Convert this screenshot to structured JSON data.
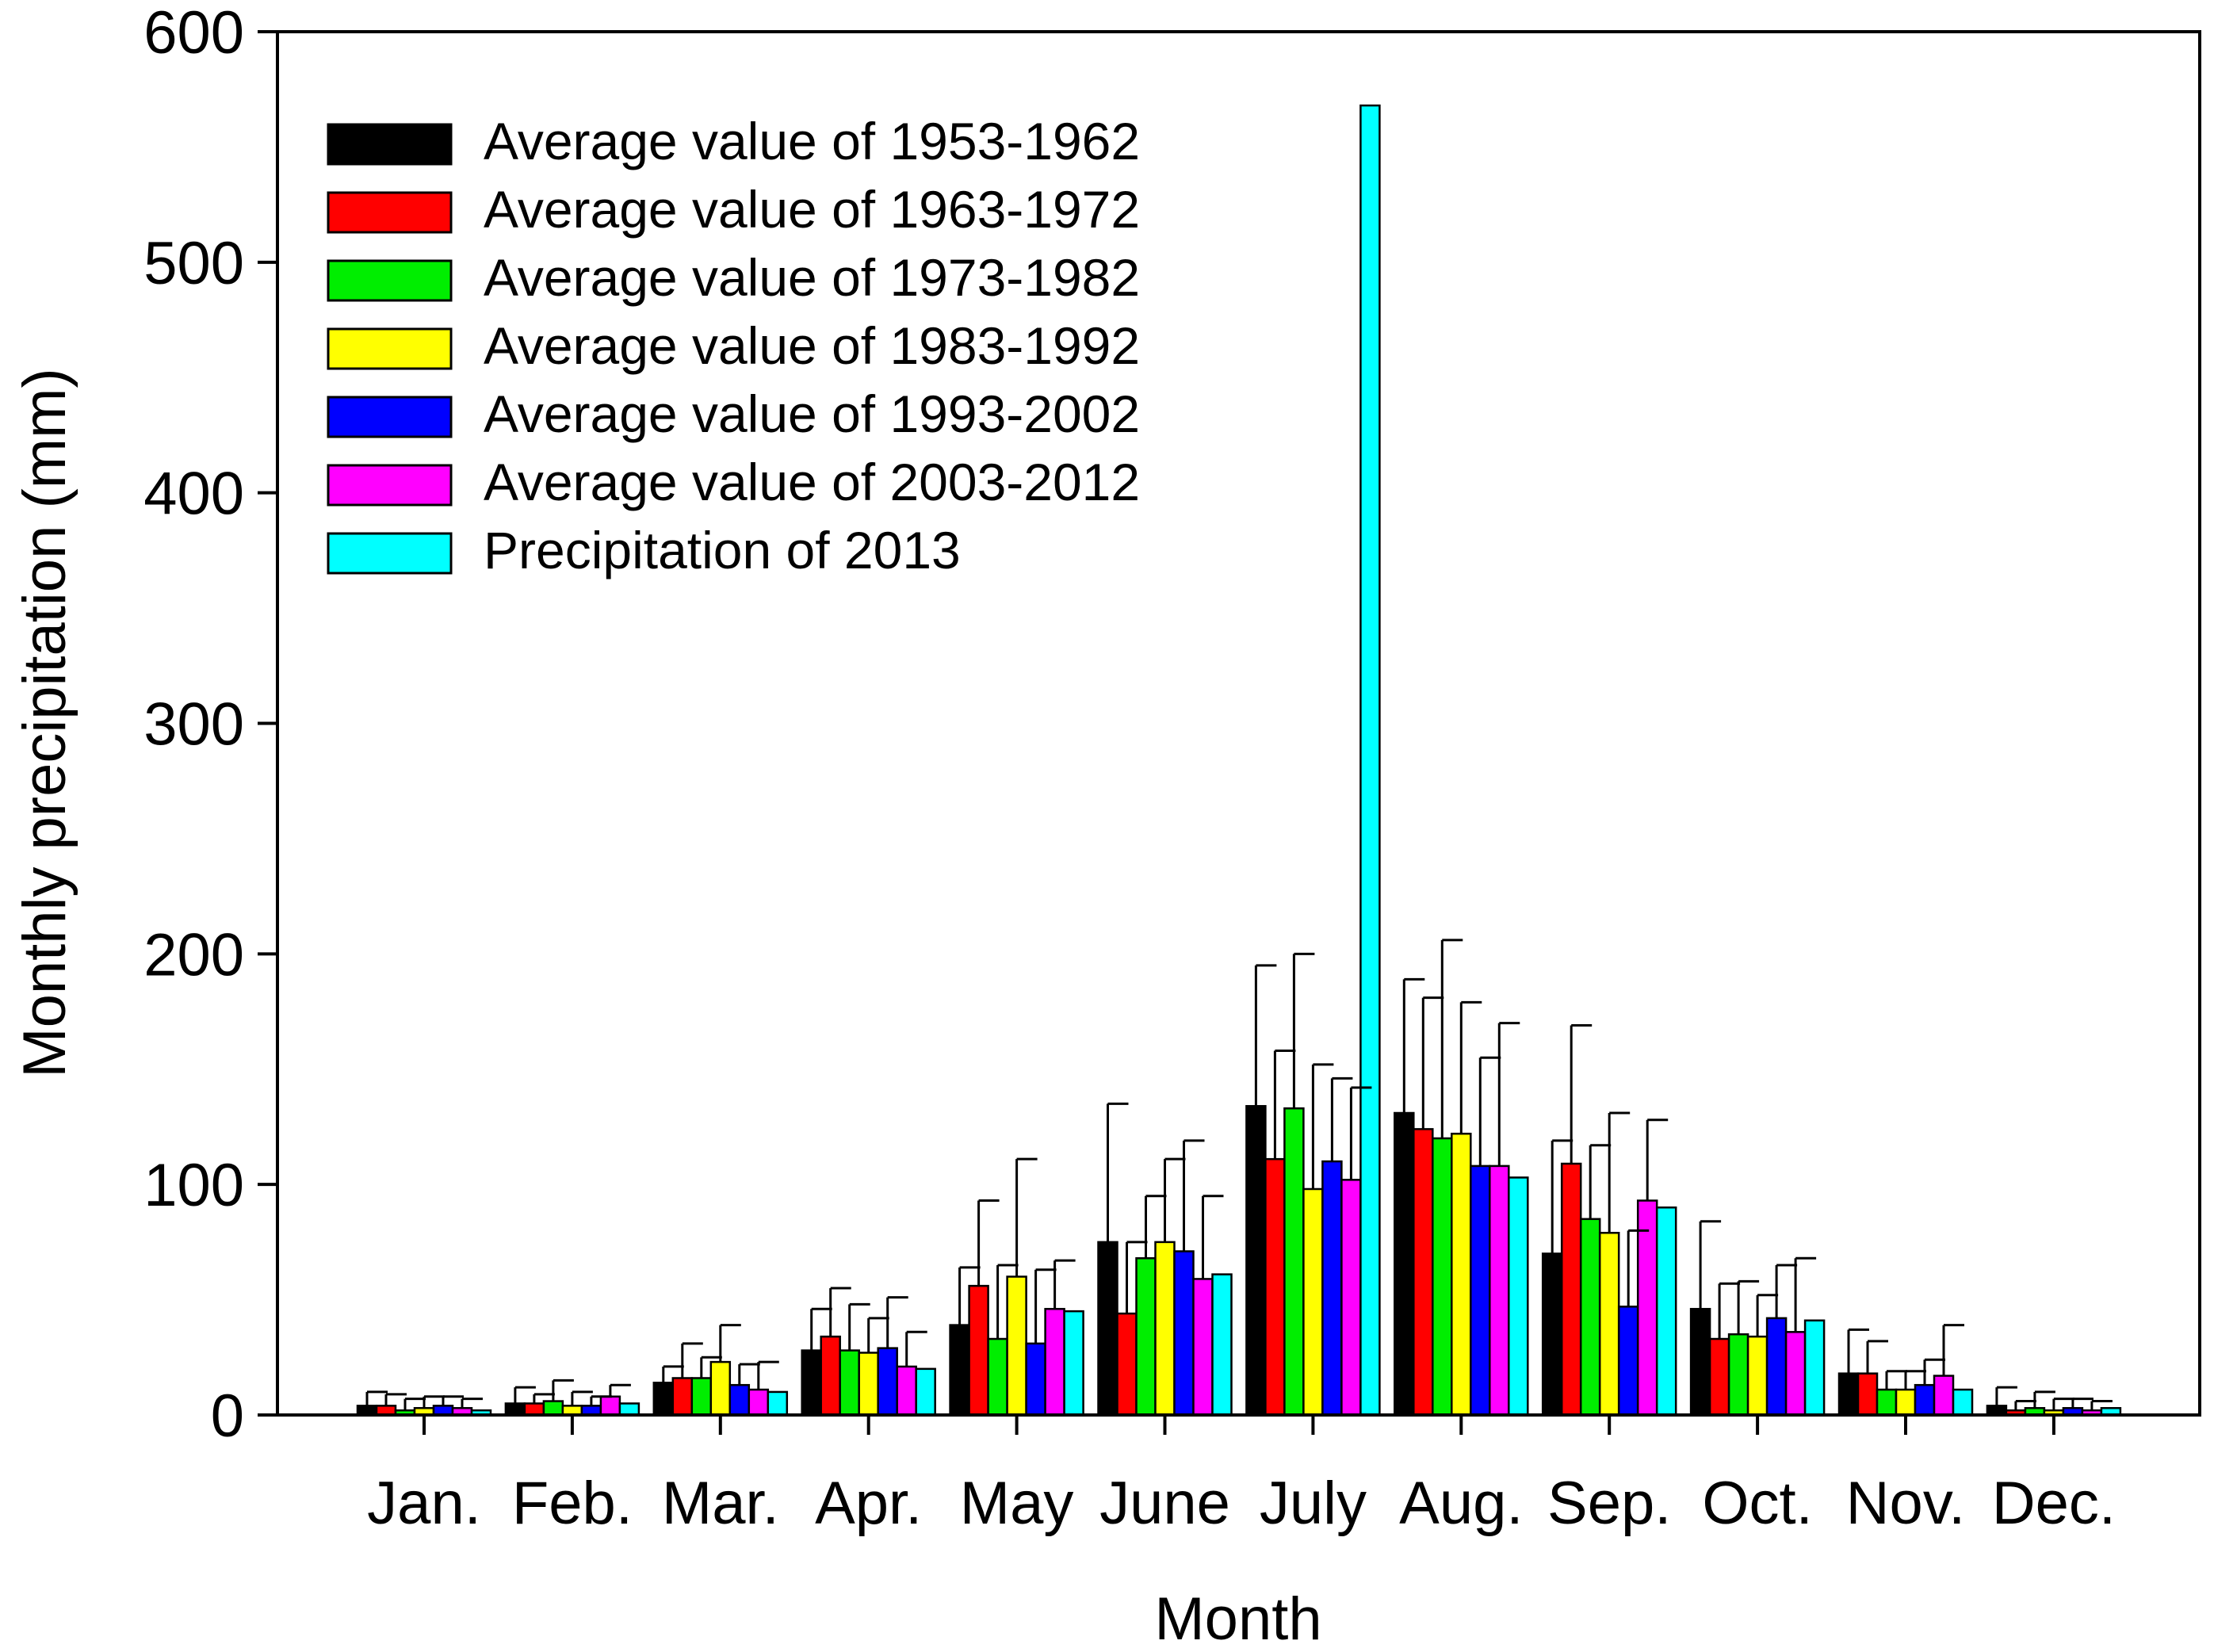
{
  "chart_data": {
    "type": "bar",
    "title": "",
    "xlabel": "Month",
    "ylabel": "Monthly precipitation (mm)",
    "ylim": [
      0,
      600
    ],
    "yticks": [
      0,
      100,
      200,
      300,
      400,
      500,
      600
    ],
    "grid": false,
    "legend_position": "top-left",
    "categories": [
      "Jan.",
      "Feb.",
      "Mar.",
      "Apr.",
      "May",
      "June",
      "July",
      "Aug.",
      "Sep.",
      "Oct.",
      "Nov.",
      "Dec."
    ],
    "series": [
      {
        "name": "Average value of 1953-1962",
        "color": "#000000",
        "values": [
          4,
          5,
          14,
          28,
          39,
          75,
          134,
          131,
          70,
          46,
          18,
          4
        ],
        "error": [
          6,
          7,
          7,
          18,
          25,
          60,
          61,
          58,
          49,
          38,
          19,
          8
        ]
      },
      {
        "name": "Average value of 1963-1972",
        "color": "#ff0000",
        "values": [
          4,
          5,
          16,
          34,
          56,
          44,
          111,
          124,
          109,
          33,
          18,
          2
        ],
        "error": [
          5,
          4,
          15,
          21,
          37,
          31,
          47,
          57,
          60,
          24,
          14,
          4
        ]
      },
      {
        "name": "Average value of 1973-1982",
        "color": "#00ee00",
        "values": [
          2,
          6,
          16,
          28,
          33,
          68,
          133,
          120,
          85,
          35,
          11,
          3
        ],
        "error": [
          5,
          9,
          9,
          20,
          32,
          27,
          67,
          86,
          32,
          23,
          8,
          7
        ]
      },
      {
        "name": "Average value of 1983-1992",
        "color": "#ffff00",
        "values": [
          3,
          4,
          23,
          27,
          60,
          75,
          98,
          122,
          79,
          34,
          11,
          2
        ],
        "error": [
          5,
          6,
          16,
          15,
          51,
          36,
          54,
          57,
          52,
          18,
          8,
          5
        ]
      },
      {
        "name": "Average value of 1993-2002",
        "color": "#0000ff",
        "values": [
          4,
          4,
          13,
          29,
          31,
          71,
          110,
          108,
          47,
          42,
          13,
          3
        ],
        "error": [
          4,
          4,
          9,
          22,
          32,
          48,
          36,
          47,
          33,
          23,
          11,
          4
        ]
      },
      {
        "name": "Average value of 2003-2012",
        "color": "#ff00ff",
        "values": [
          3,
          8,
          11,
          21,
          46,
          59,
          102,
          108,
          93,
          36,
          17,
          2
        ],
        "error": [
          4,
          5,
          12,
          15,
          21,
          36,
          40,
          62,
          35,
          32,
          22,
          4
        ]
      },
      {
        "name": "Precipitation of 2013",
        "color": "#00ffff",
        "values": [
          2,
          5,
          10,
          20,
          45,
          61,
          568,
          103,
          90,
          41,
          11,
          3
        ],
        "error": [
          0,
          0,
          0,
          0,
          0,
          0,
          0,
          0,
          0,
          0,
          0,
          0
        ]
      }
    ]
  }
}
